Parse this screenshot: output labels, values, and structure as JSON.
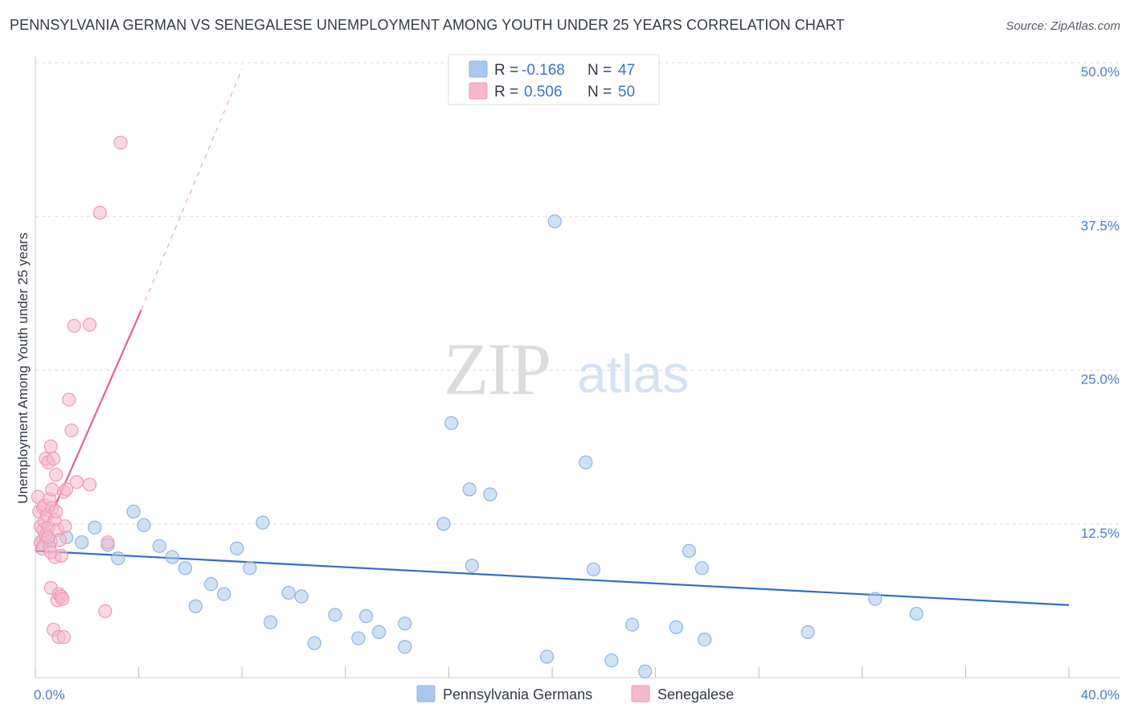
{
  "title": "PENNSYLVANIA GERMAN VS SENEGALESE UNEMPLOYMENT AMONG YOUTH UNDER 25 YEARS CORRELATION CHART",
  "source": "Source: ZipAtlas.com",
  "watermark": {
    "zip": "ZIP",
    "atlas": "atlas"
  },
  "colors": {
    "blue_fill": "#aac8ee",
    "blue_stroke": "#8fb3e0",
    "blue_line": "#2f6fc6",
    "pink_fill": "#f6b8cc",
    "pink_stroke": "#ee9ab5",
    "pink_line": "#e2628d",
    "tick_text": "#4a7cc6",
    "grid": "#dddddd"
  },
  "chart_data": {
    "type": "scatter",
    "xlabel": "",
    "ylabel": "Unemployment Among Youth under 25 years",
    "xlim": [
      0,
      40
    ],
    "ylim": [
      0,
      50
    ],
    "x_tick_labels": [
      {
        "value": 0,
        "label": "0.0%"
      },
      {
        "value": 40,
        "label": "40.0%"
      }
    ],
    "y_tick_labels": [
      {
        "value": 12.5,
        "label": "12.5%"
      },
      {
        "value": 25,
        "label": "25.0%"
      },
      {
        "value": 37.5,
        "label": "37.5%"
      },
      {
        "value": 50,
        "label": "50.0%"
      }
    ],
    "x_minor_ticks": [
      0,
      4,
      8,
      12,
      16,
      20,
      24,
      28,
      32,
      36,
      40
    ],
    "grid": true,
    "legend": {
      "placement": "top-center",
      "entries": [
        {
          "r_label": "R =",
          "r_value": "-0.168",
          "n_label": "N =",
          "n_value": "47"
        },
        {
          "r_label": "R =",
          "r_value": "0.506",
          "n_label": "N =",
          "n_value": "50"
        }
      ]
    },
    "bottom_legend": [
      "Pennsylvania Germans",
      "Senegalese"
    ],
    "series": [
      {
        "name": "Pennsylvania Germans",
        "color": "blue",
        "trend": {
          "x0": 0,
          "y0": 10.3,
          "x1": 40,
          "y1": 5.9,
          "dashed_extension": false
        },
        "points": [
          [
            0.3,
            11.2
          ],
          [
            0.6,
            11.1
          ],
          [
            1.2,
            11.4
          ],
          [
            1.8,
            11.0
          ],
          [
            2.3,
            12.2
          ],
          [
            2.8,
            10.8
          ],
          [
            3.2,
            9.7
          ],
          [
            3.8,
            13.5
          ],
          [
            4.2,
            12.4
          ],
          [
            4.8,
            10.7
          ],
          [
            5.3,
            9.8
          ],
          [
            5.8,
            8.9
          ],
          [
            6.2,
            5.8
          ],
          [
            6.8,
            7.6
          ],
          [
            7.3,
            6.8
          ],
          [
            7.8,
            10.5
          ],
          [
            8.3,
            8.9
          ],
          [
            8.8,
            12.6
          ],
          [
            9.1,
            4.5
          ],
          [
            9.8,
            6.9
          ],
          [
            10.3,
            6.6
          ],
          [
            10.8,
            2.8
          ],
          [
            11.6,
            5.1
          ],
          [
            12.5,
            3.2
          ],
          [
            12.8,
            5.0
          ],
          [
            13.3,
            3.7
          ],
          [
            14.3,
            4.4
          ],
          [
            14.3,
            2.5
          ],
          [
            15.8,
            12.5
          ],
          [
            16.1,
            20.7
          ],
          [
            16.8,
            15.3
          ],
          [
            16.9,
            9.1
          ],
          [
            17.6,
            14.9
          ],
          [
            19.8,
            1.7
          ],
          [
            20.1,
            37.1
          ],
          [
            21.3,
            17.5
          ],
          [
            21.6,
            8.8
          ],
          [
            22.3,
            1.4
          ],
          [
            23.1,
            4.3
          ],
          [
            23.6,
            0.5
          ],
          [
            24.8,
            4.1
          ],
          [
            25.3,
            10.3
          ],
          [
            25.8,
            8.9
          ],
          [
            25.9,
            3.1
          ],
          [
            29.9,
            3.7
          ],
          [
            32.5,
            6.4
          ],
          [
            34.1,
            5.2
          ]
        ]
      },
      {
        "name": "Senegalese",
        "color": "pink",
        "trend": {
          "x0": 0,
          "y0": 10.3,
          "x1": 4.1,
          "y1": 29.9,
          "dashed_to_x": 8.0,
          "dashed_to_y": 49.5
        },
        "points": [
          [
            0.1,
            14.7
          ],
          [
            0.15,
            13.5
          ],
          [
            0.2,
            12.3
          ],
          [
            0.2,
            11.0
          ],
          [
            0.25,
            10.5
          ],
          [
            0.3,
            13.8
          ],
          [
            0.3,
            12.0
          ],
          [
            0.35,
            14.0
          ],
          [
            0.35,
            12.7
          ],
          [
            0.4,
            11.6
          ],
          [
            0.4,
            17.8
          ],
          [
            0.45,
            13.2
          ],
          [
            0.5,
            17.5
          ],
          [
            0.5,
            12.2
          ],
          [
            0.55,
            14.5
          ],
          [
            0.55,
            10.6
          ],
          [
            0.6,
            18.8
          ],
          [
            0.6,
            7.3
          ],
          [
            0.65,
            15.3
          ],
          [
            0.65,
            13.8
          ],
          [
            0.7,
            17.8
          ],
          [
            0.7,
            3.9
          ],
          [
            0.75,
            12.8
          ],
          [
            0.75,
            9.8
          ],
          [
            0.8,
            16.5
          ],
          [
            0.8,
            13.5
          ],
          [
            0.85,
            12.0
          ],
          [
            0.85,
            6.3
          ],
          [
            0.9,
            6.8
          ],
          [
            0.9,
            3.3
          ],
          [
            0.95,
            11.2
          ],
          [
            1.0,
            6.6
          ],
          [
            1.0,
            9.9
          ],
          [
            1.05,
            6.4
          ],
          [
            1.1,
            15.1
          ],
          [
            1.1,
            3.3
          ],
          [
            1.15,
            12.3
          ],
          [
            1.2,
            15.3
          ],
          [
            1.3,
            22.6
          ],
          [
            1.4,
            20.1
          ],
          [
            1.5,
            28.6
          ],
          [
            1.6,
            15.9
          ],
          [
            2.1,
            15.7
          ],
          [
            2.1,
            28.7
          ],
          [
            2.5,
            37.8
          ],
          [
            2.7,
            5.4
          ],
          [
            2.8,
            11.0
          ],
          [
            3.3,
            43.5
          ],
          [
            0.5,
            11.4
          ],
          [
            0.6,
            10.2
          ]
        ]
      }
    ]
  }
}
